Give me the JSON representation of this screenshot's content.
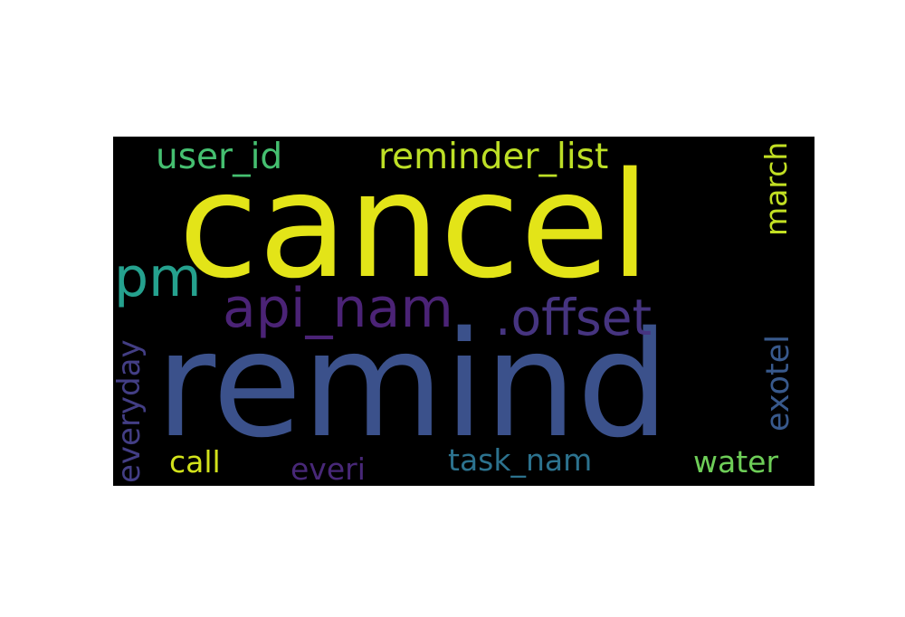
{
  "wordcloud": {
    "background": "#000000",
    "words": [
      {
        "key": "cancel",
        "text": "cancel",
        "color": "#e3e418",
        "orientation": "horizontal"
      },
      {
        "key": "remind",
        "text": "remind",
        "color": "#3b518b",
        "orientation": "horizontal"
      },
      {
        "key": "user_id",
        "text": "user_id",
        "color": "#45bf70",
        "orientation": "horizontal"
      },
      {
        "key": "reminder_list",
        "text": "reminder_list",
        "color": "#bddf26",
        "orientation": "horizontal"
      },
      {
        "key": "march",
        "text": "march",
        "color": "#c2df23",
        "orientation": "vertical"
      },
      {
        "key": "pm",
        "text": "pm",
        "color": "#25a18e",
        "orientation": "horizontal"
      },
      {
        "key": "api_nam",
        "text": "api_nam",
        "color": "#4b2376",
        "orientation": "horizontal"
      },
      {
        "key": "offset",
        "text": ".offset",
        "color": "#463480",
        "orientation": "horizontal"
      },
      {
        "key": "exotel",
        "text": "exotel",
        "color": "#38598c",
        "orientation": "vertical"
      },
      {
        "key": "everyday",
        "text": "everyday",
        "color": "#433e85",
        "orientation": "vertical"
      },
      {
        "key": "call",
        "text": "call",
        "color": "#d2e21b",
        "orientation": "horizontal"
      },
      {
        "key": "everi",
        "text": "everi",
        "color": "#482878",
        "orientation": "horizontal"
      },
      {
        "key": "task_nam",
        "text": "task_nam",
        "color": "#2c728e",
        "orientation": "horizontal"
      },
      {
        "key": "water",
        "text": "water",
        "color": "#6ece58",
        "orientation": "horizontal"
      }
    ]
  }
}
